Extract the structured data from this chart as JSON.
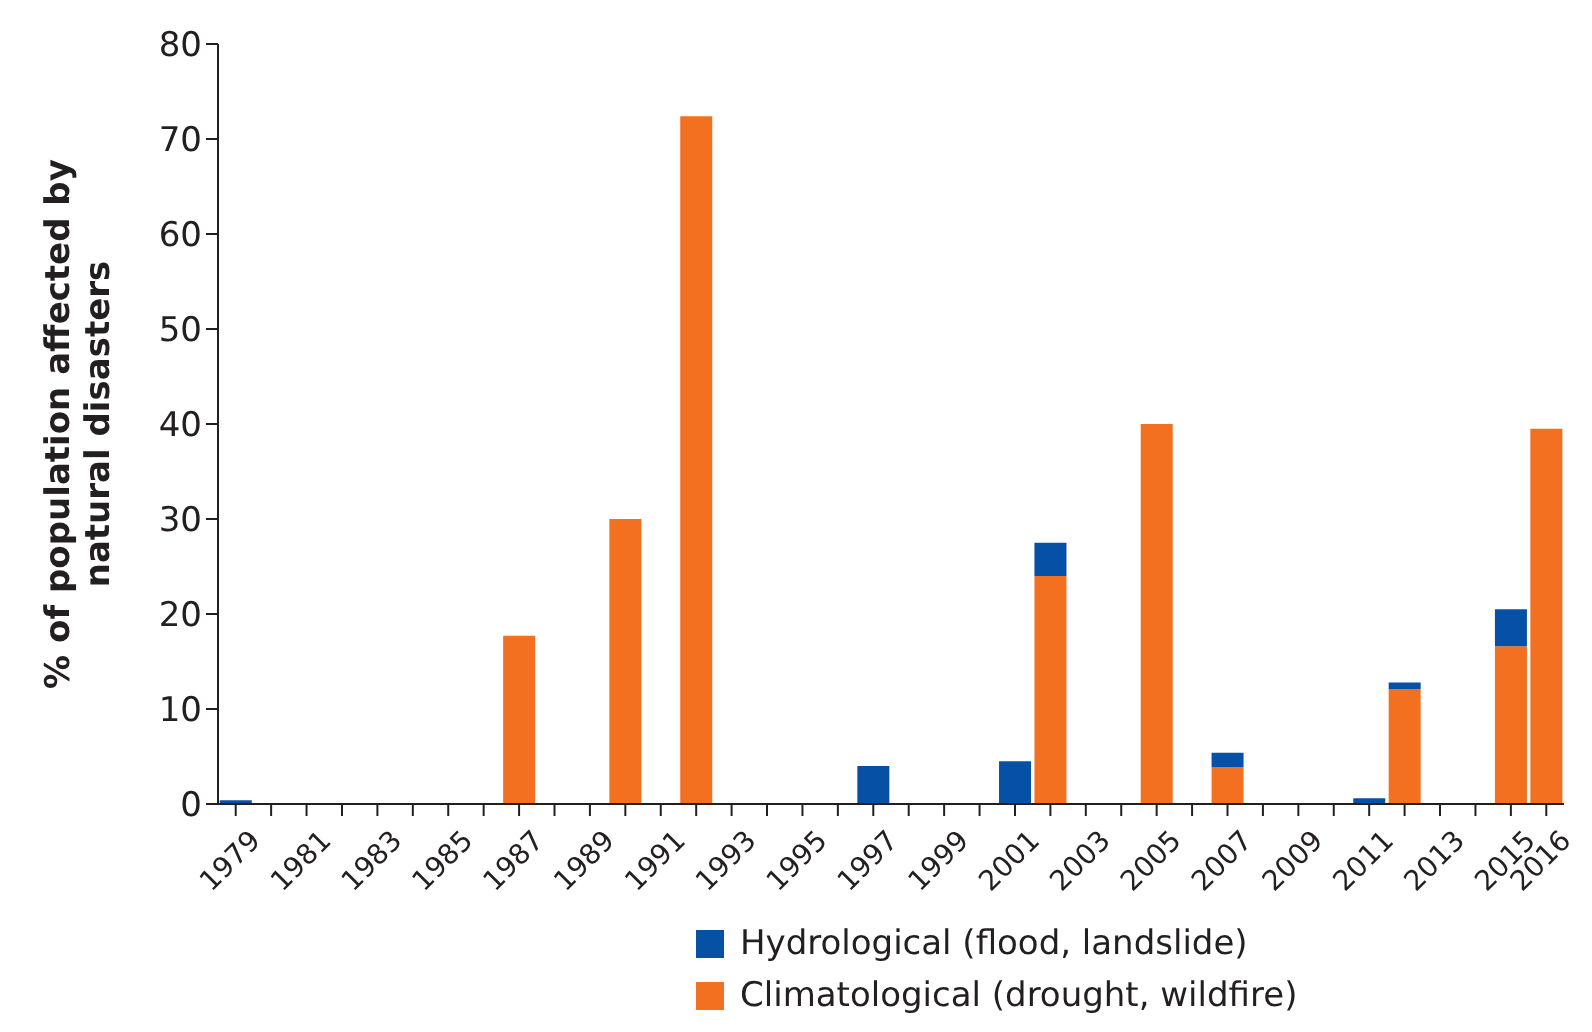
{
  "chart_data": {
    "type": "bar",
    "ylabel": "% of population affected by natural disasters",
    "stacked": true,
    "legend": "bottom",
    "grid": false,
    "categories": [
      "1979",
      null,
      "1981",
      null,
      "1983",
      null,
      "1985",
      null,
      "1987",
      null,
      "1989",
      null,
      "1991",
      null,
      "1993",
      null,
      "1995",
      null,
      "1997",
      null,
      "1999",
      null,
      "2001",
      null,
      "2003",
      null,
      "2005",
      null,
      "2007",
      null,
      "2009",
      null,
      "2011",
      null,
      "2013",
      null,
      "2015",
      "2016"
    ],
    "series": [
      {
        "name": "Climatological (drought, wildfire)",
        "color": "#f37021",
        "values": [
          0,
          0,
          0,
          0,
          0,
          0,
          0,
          0,
          17.7,
          0,
          0,
          30.0,
          0,
          72.4,
          0,
          0,
          0,
          0,
          0,
          0,
          0,
          0,
          0,
          24.0,
          0,
          0,
          40.0,
          0,
          3.9,
          0,
          0,
          0,
          0,
          12.1,
          0,
          0,
          16.6,
          39.5
        ]
      },
      {
        "name": "Hydrological (flood, landslide)",
        "color": "#0650a6",
        "values": [
          0.4,
          0,
          0,
          0,
          0,
          0,
          0,
          0,
          0,
          0,
          0,
          0,
          0,
          0,
          0,
          0,
          0,
          0,
          4.0,
          0,
          0,
          0,
          4.5,
          3.5,
          0,
          0,
          0,
          0,
          1.5,
          0,
          0,
          0,
          0.6,
          0.7,
          0,
          0,
          3.9,
          0
        ]
      }
    ],
    "ylim": [
      0,
      80
    ],
    "yticks": [
      0,
      10,
      20,
      30,
      40,
      50,
      60,
      70,
      80
    ]
  }
}
